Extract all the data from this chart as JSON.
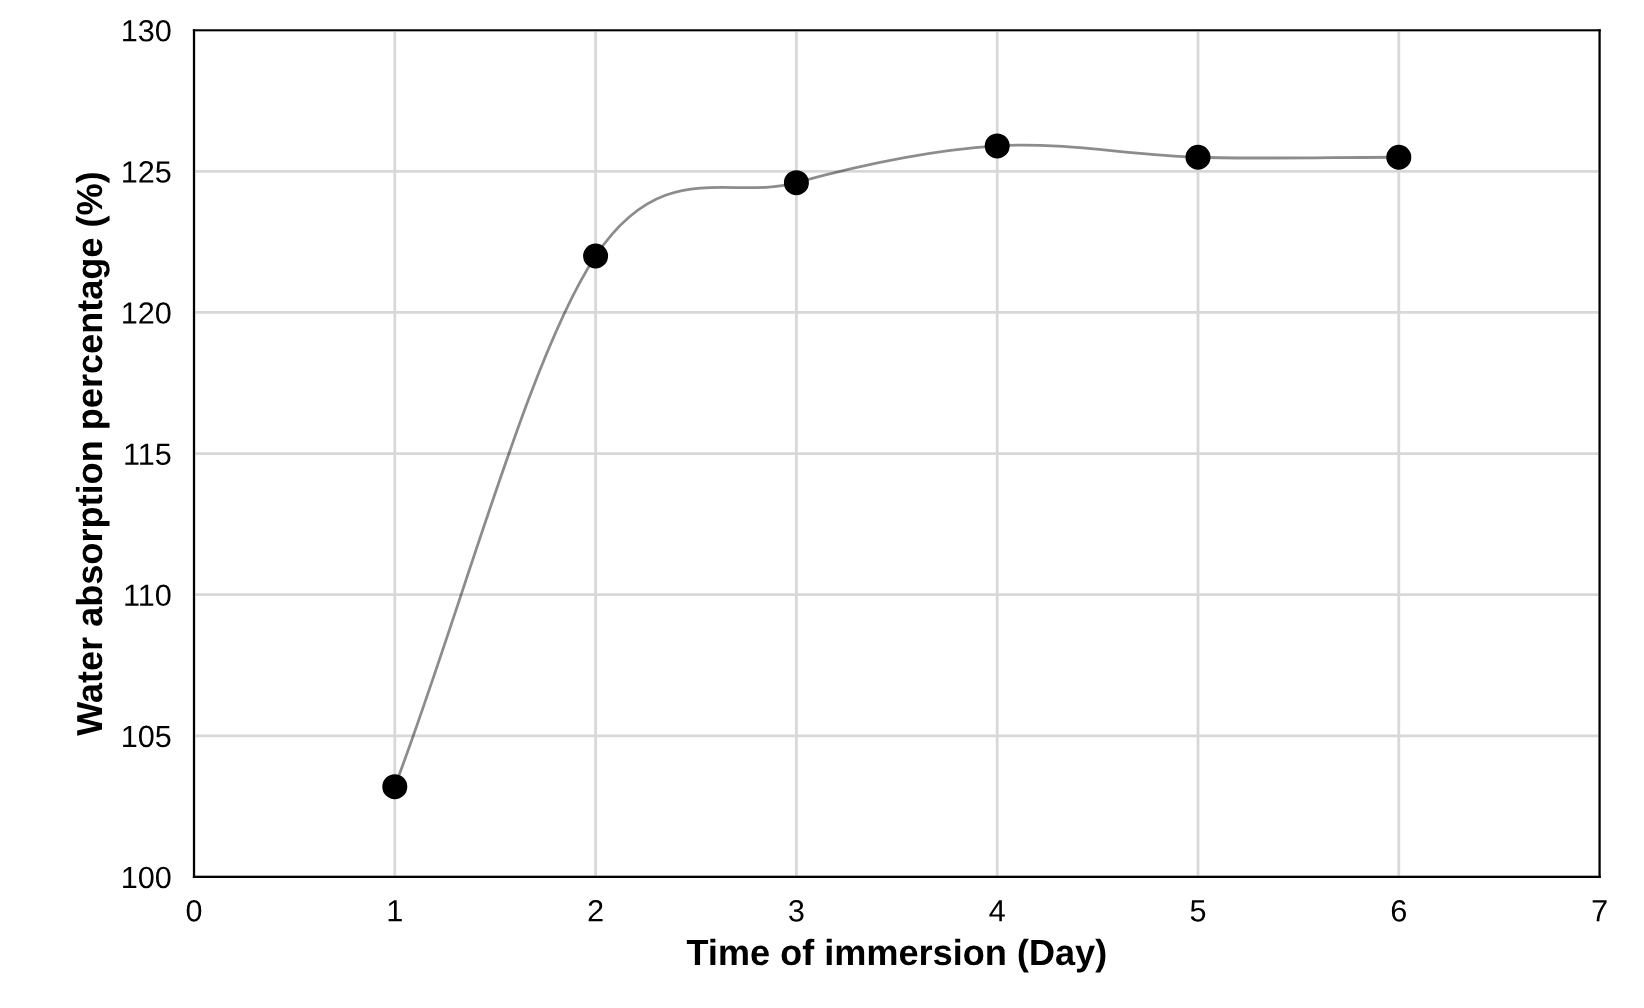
{
  "chart_data": {
    "type": "line",
    "xlabel": "Time of immersion (Day)",
    "ylabel": "Water absorption percentage (%)",
    "x": [
      1,
      2,
      3,
      4,
      5,
      6
    ],
    "series": [
      {
        "color": "#000000",
        "values": [
          103.2,
          122.0,
          124.6,
          125.9,
          125.5,
          125.5
        ]
      }
    ],
    "xlim": [
      0,
      7
    ],
    "xticks": [
      0,
      1,
      2,
      3,
      4,
      5,
      6,
      7
    ],
    "ylim": [
      100,
      130
    ],
    "yticks": [
      100,
      105,
      110,
      115,
      120,
      125,
      130
    ],
    "grid": true,
    "marker": "circle",
    "line_style": "solid"
  }
}
